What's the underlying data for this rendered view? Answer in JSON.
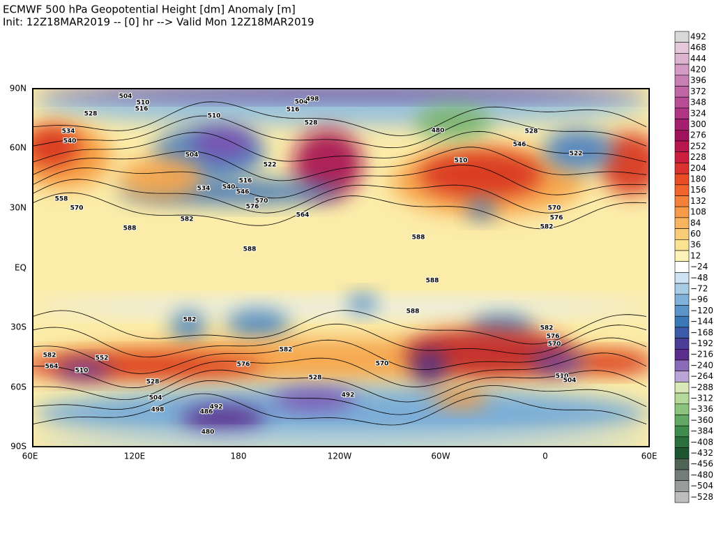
{
  "header": {
    "title": "ECMWF 500 hPa Geopotential Height [dm] Anomaly [m]",
    "subtitle": "Init: 12Z18MAR2019 -- [0] hr --> Valid Mon 12Z18MAR2019"
  },
  "axes": {
    "x_ticks": [
      "60E",
      "120E",
      "180",
      "120W",
      "60W",
      "0",
      "60E"
    ],
    "y_ticks": [
      "90N",
      "60N",
      "30N",
      "EQ",
      "30S",
      "60S",
      "90S"
    ]
  },
  "colorbar": {
    "labels": [
      "492",
      "468",
      "444",
      "420",
      "396",
      "372",
      "348",
      "324",
      "300",
      "276",
      "252",
      "228",
      "204",
      "180",
      "156",
      "132",
      "108",
      "84",
      "60",
      "36",
      "12",
      "−24",
      "−48",
      "−72",
      "−96",
      "−120",
      "−144",
      "−168",
      "−192",
      "−216",
      "−240",
      "−264",
      "−288",
      "−312",
      "−336",
      "−360",
      "−384",
      "−408",
      "−432",
      "−456",
      "−480",
      "−504",
      "−528"
    ],
    "colors": [
      "#d9d9d9",
      "#e6c8dc",
      "#dcb4d0",
      "#d49cc4",
      "#c87fb4",
      "#bf66a5",
      "#b84d96",
      "#b03585",
      "#a51e70",
      "#a0135c",
      "#b8164f",
      "#cc1f3f",
      "#dd3330",
      "#e84d25",
      "#f0652b",
      "#f4813a",
      "#f69b4a",
      "#f8b45e",
      "#f9cd78",
      "#fbe394",
      "#fdf3b8",
      "#ffffff",
      "#cfe4f2",
      "#a9cde6",
      "#80b1d8",
      "#5a94c8",
      "#3b78b7",
      "#3c5aa8",
      "#4a3e99",
      "#5a2d8c",
      "#8a6bb8",
      "#b9a6d6",
      "#dbe9b8",
      "#b4d99a",
      "#8cc47e",
      "#63a864",
      "#3f8c4c",
      "#2a6f3c",
      "#1d5530",
      "#4f6456",
      "#737d77",
      "#989c9a",
      "#bdbdbd"
    ]
  },
  "contour_labels": [
    "504",
    "510",
    "516",
    "528",
    "534",
    "540",
    "510",
    "504",
    "516",
    "522",
    "534",
    "540",
    "546",
    "570",
    "576",
    "582",
    "588",
    "588",
    "528",
    "516",
    "504",
    "498",
    "480",
    "510",
    "546",
    "528",
    "522",
    "570",
    "576",
    "582",
    "588",
    "588",
    "588",
    "582",
    "582",
    "576",
    "552",
    "510",
    "528",
    "504",
    "498",
    "492",
    "486",
    "480",
    "492",
    "528",
    "570",
    "582",
    "576",
    "570",
    "510",
    "504",
    "582",
    "564",
    "558",
    "570",
    "564"
  ]
}
